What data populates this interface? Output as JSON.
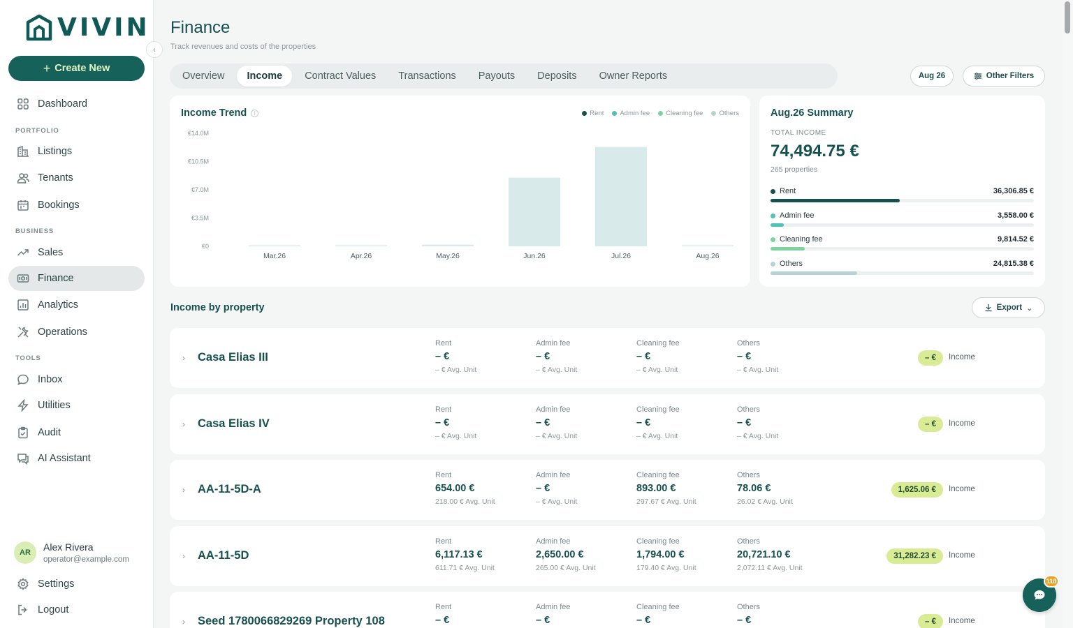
{
  "brand": {
    "name": "VIVIN"
  },
  "sidebar": {
    "create_label": "Create New",
    "items": [
      {
        "label": "Dashboard",
        "icon": "grid-icon"
      },
      {
        "label": "Listings",
        "icon": "building-icon"
      },
      {
        "label": "Tenants",
        "icon": "users-icon"
      },
      {
        "label": "Bookings",
        "icon": "calendar-icon"
      },
      {
        "label": "Sales",
        "icon": "trend-icon"
      },
      {
        "label": "Finance",
        "icon": "money-icon"
      },
      {
        "label": "Analytics",
        "icon": "chart-icon"
      },
      {
        "label": "Operations",
        "icon": "tools-icon"
      },
      {
        "label": "Inbox",
        "icon": "chat-icon"
      },
      {
        "label": "Utilities",
        "icon": "bolt-icon"
      },
      {
        "label": "Audit",
        "icon": "clipboard-icon"
      },
      {
        "label": "AI Assistant",
        "icon": "ai-chat-icon"
      }
    ],
    "sections": [
      "PORTFOLIO",
      "BUSINESS",
      "TOOLS"
    ],
    "user": {
      "initials": "AR",
      "name": "Alex Rivera",
      "email": "operator@example.com"
    },
    "settings_label": "Settings",
    "logout_label": "Logout"
  },
  "header": {
    "title": "Finance",
    "subtitle": "Track revenues and costs of the properties",
    "tabs": [
      "Overview",
      "Income",
      "Contract Values",
      "Transactions",
      "Payouts",
      "Deposits",
      "Owner Reports"
    ],
    "active_tab": "Income",
    "period_label": "Aug 26",
    "filters_label": "Other Filters"
  },
  "chart_data": {
    "type": "bar",
    "title": "Income Trend",
    "categories": [
      "Mar.26",
      "Apr.26",
      "May.26",
      "Jun.26",
      "Jul.26",
      "Aug.26"
    ],
    "y_ticks": [
      "€14.0M",
      "€10.5M",
      "€7.0M",
      "€3.5M",
      "€0"
    ],
    "ylim": [
      0,
      14000000
    ],
    "legend": [
      "Rent",
      "Admin fee",
      "Cleaning fee",
      "Others"
    ],
    "legend_colors": [
      "#16504f",
      "#4fc1b7",
      "#7fd3a0",
      "#b7d2d4"
    ],
    "series": [
      {
        "name": "Others",
        "values": [
          30000,
          20000,
          200000,
          8500000,
          12300000,
          30000
        ]
      }
    ],
    "bar_color": "#d8ebea"
  },
  "summary": {
    "title": "Aug.26 Summary",
    "total_label": "TOTAL INCOME",
    "total_value": "74,494.75 €",
    "properties": "265 properties",
    "rows": [
      {
        "label": "Rent",
        "value": "36,306.85 €",
        "fraction": 0.49,
        "color": "#16504f"
      },
      {
        "label": "Admin fee",
        "value": "3,558.00 €",
        "fraction": 0.05,
        "color": "#4fc1b7"
      },
      {
        "label": "Cleaning fee",
        "value": "9,814.52 €",
        "fraction": 0.13,
        "color": "#7fd3a0"
      },
      {
        "label": "Others",
        "value": "24,815.38 €",
        "fraction": 0.33,
        "color": "#b7d2d4"
      }
    ]
  },
  "income_by_property": {
    "title": "Income by property",
    "export_label": "Export",
    "metric_labels": [
      "Rent",
      "Admin fee",
      "Cleaning fee",
      "Others"
    ],
    "income_word": "Income",
    "rows": [
      {
        "name": "Casa Elias III",
        "metrics": [
          [
            "– €",
            "– € Avg. Unit"
          ],
          [
            "– €",
            "– € Avg. Unit"
          ],
          [
            "– €",
            "– € Avg. Unit"
          ],
          [
            "– €",
            "– € Avg. Unit"
          ]
        ],
        "total": "– €"
      },
      {
        "name": "Casa Elias IV",
        "metrics": [
          [
            "– €",
            "– € Avg. Unit"
          ],
          [
            "– €",
            "– € Avg. Unit"
          ],
          [
            "– €",
            "– € Avg. Unit"
          ],
          [
            "– €",
            "– € Avg. Unit"
          ]
        ],
        "total": "– €"
      },
      {
        "name": "AA-11-5D-A",
        "metrics": [
          [
            "654.00 €",
            "218.00 € Avg. Unit"
          ],
          [
            "– €",
            "– € Avg. Unit"
          ],
          [
            "893.00 €",
            "297.67 € Avg. Unit"
          ],
          [
            "78.06 €",
            "26.02 € Avg. Unit"
          ]
        ],
        "total": "1,625.06 €"
      },
      {
        "name": "AA-11-5D",
        "metrics": [
          [
            "6,117.13 €",
            "611.71 € Avg. Unit"
          ],
          [
            "2,650.00 €",
            "265.00 € Avg. Unit"
          ],
          [
            "1,794.00 €",
            "179.40 € Avg. Unit"
          ],
          [
            "20,721.10 €",
            "2,072.11 € Avg. Unit"
          ]
        ],
        "total": "31,282.23 €"
      },
      {
        "name": "Seed 1780066829269 Property 108",
        "metrics": [
          [
            "– €",
            ""
          ],
          [
            "– €",
            ""
          ],
          [
            "– €",
            ""
          ],
          [
            "– €",
            ""
          ]
        ],
        "total": "– €"
      }
    ]
  },
  "chat": {
    "badge": "118"
  }
}
